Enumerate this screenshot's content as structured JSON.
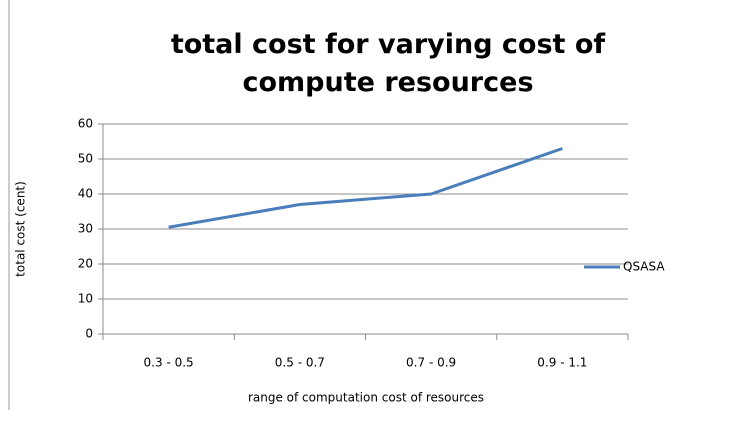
{
  "chart_data": {
    "type": "line",
    "title": "total cost for varying cost of compute resources",
    "x_label": "range of computation  cost of resources",
    "y_label": "total cost (cent)",
    "categories": [
      "0.3 - 0.5",
      "0.5 - 0.7",
      "0.7 - 0.9",
      "0.9 - 1.1"
    ],
    "series": [
      {
        "name": "QSASA",
        "color": "#4a7ebb",
        "values": [
          30.5,
          37,
          40,
          53
        ]
      }
    ],
    "ylim": [
      0,
      60
    ],
    "yticks": [
      0,
      10,
      20,
      30,
      40,
      50,
      60
    ],
    "grid": true,
    "legend": "right"
  }
}
